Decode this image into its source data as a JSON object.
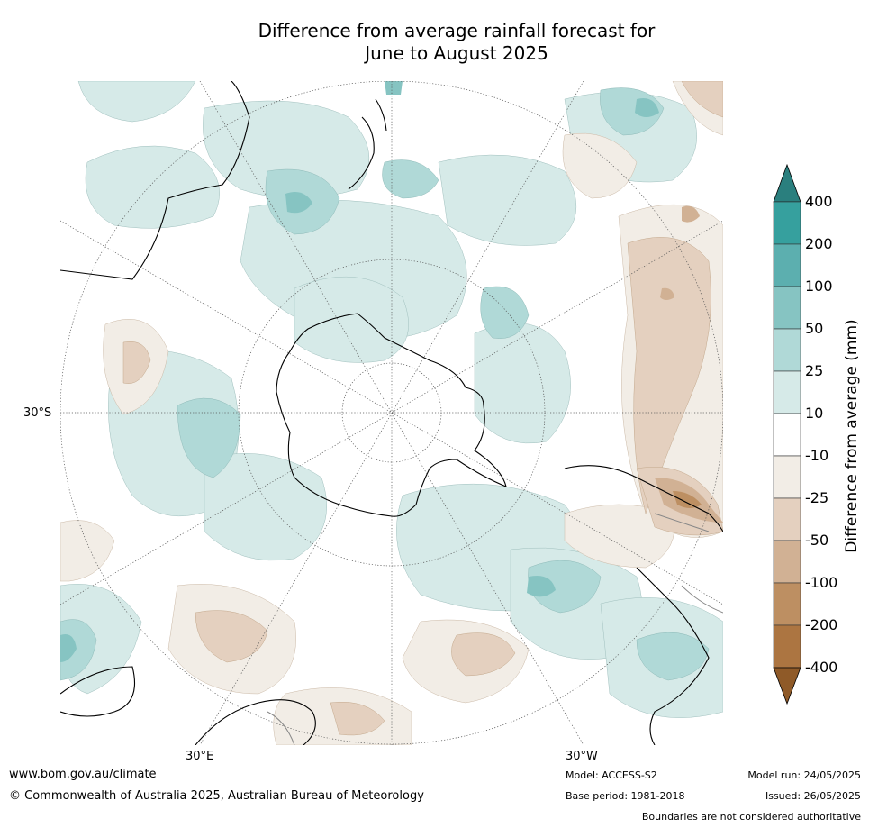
{
  "title_line1": "Difference from average rainfall forecast for",
  "title_line2": "June to August 2025",
  "map": {
    "lat_label": "30°S",
    "lon_label_left": "30°E",
    "lon_label_right": "30°W"
  },
  "colorbar": {
    "label": "Difference from average (mm)",
    "ticks": [
      "400",
      "200",
      "100",
      "50",
      "25",
      "10",
      "-10",
      "-25",
      "-50",
      "-100",
      "-200",
      "-400"
    ],
    "colors": [
      "#2a7f7e",
      "#36a09e",
      "#5cafaf",
      "#86c4c2",
      "#b0d9d7",
      "#d6eae8",
      "#ffffff",
      "#f2ede6",
      "#e4d0bf",
      "#d1b194",
      "#bd8f62",
      "#ac7541",
      "#8f5a28"
    ]
  },
  "footer": {
    "website": "www.bom.gov.au/climate",
    "copyright": "© Commonwealth of Australia 2025, Australian Bureau of Meteorology",
    "model": "Model: ACCESS-S2",
    "base_period": "Base period: 1981-2018",
    "model_run": "Model run: 24/05/2025",
    "issued": "Issued: 26/05/2025",
    "disclaimer": "Boundaries are not considered authoritative"
  }
}
